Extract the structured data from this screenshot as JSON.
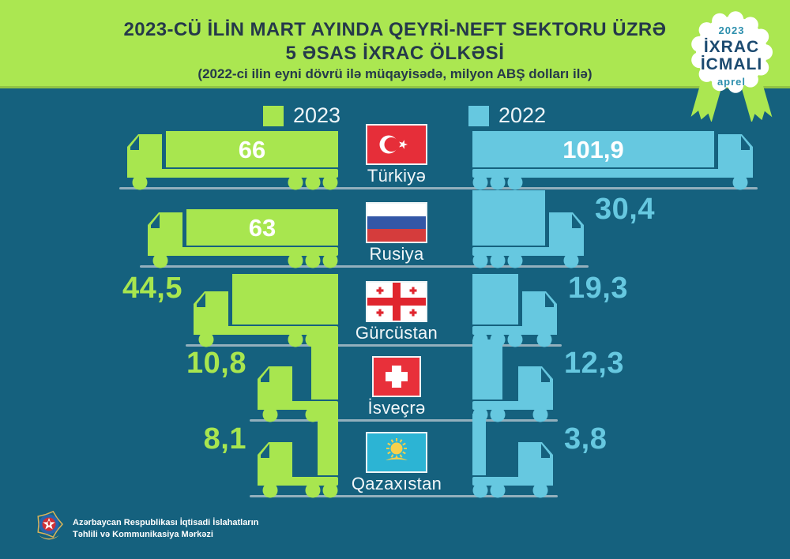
{
  "header": {
    "title_line1": "2023-CÜ İLİN MART AYINDA QEYRİ-NEFT SEKTORU ÜZRƏ",
    "title_line2": "5 ƏSAS İXRAC ÖLKƏSİ",
    "subtitle": "(2022-ci ilin eyni dövrü ilə müqayisədə, milyon ABŞ dolları ilə)"
  },
  "badge": {
    "year": "2023",
    "title_line1": "İXRAC",
    "title_line2": "İCMALI",
    "month": "aprel"
  },
  "legend": {
    "items": [
      {
        "label": "2023",
        "color": "#a8e64f"
      },
      {
        "label": "2022",
        "color": "#66c8e0"
      }
    ]
  },
  "chart_data": {
    "type": "bar",
    "title": "2023-cü ilin mart ayında qeyri-neft sektoru üzrə 5 əsas ixrac ölkəsi",
    "subtitle": "2022-ci ilin eyni dövrü ilə müqayisədə",
    "unit": "milyon ABŞ dolları",
    "categories": [
      "Türkiyə",
      "Rusiya",
      "Gürcüstan",
      "İsveçrə",
      "Qazaxıstan"
    ],
    "series": [
      {
        "name": "2023",
        "color": "#a8e64f",
        "values": [
          66,
          63,
          44.5,
          10.8,
          8.1
        ],
        "labels": [
          "66",
          "63",
          "44,5",
          "10,8",
          "8,1"
        ]
      },
      {
        "name": "2022",
        "color": "#66c8e0",
        "values": [
          101.9,
          30.4,
          19.3,
          12.3,
          3.8
        ],
        "labels": [
          "101,9",
          "30,4",
          "19,3",
          "12,3",
          "3,8"
        ]
      }
    ],
    "flags": [
      "turkiye",
      "rusiya",
      "gurcustan",
      "isvecre",
      "qazaxistan"
    ],
    "legend_position": "top",
    "grid": false
  },
  "footer": {
    "org_line1": "Azərbaycan Respublikası İqtisadi İslahatların",
    "org_line2": "Təhlili və Kommunikasiya Mərkəzi"
  }
}
